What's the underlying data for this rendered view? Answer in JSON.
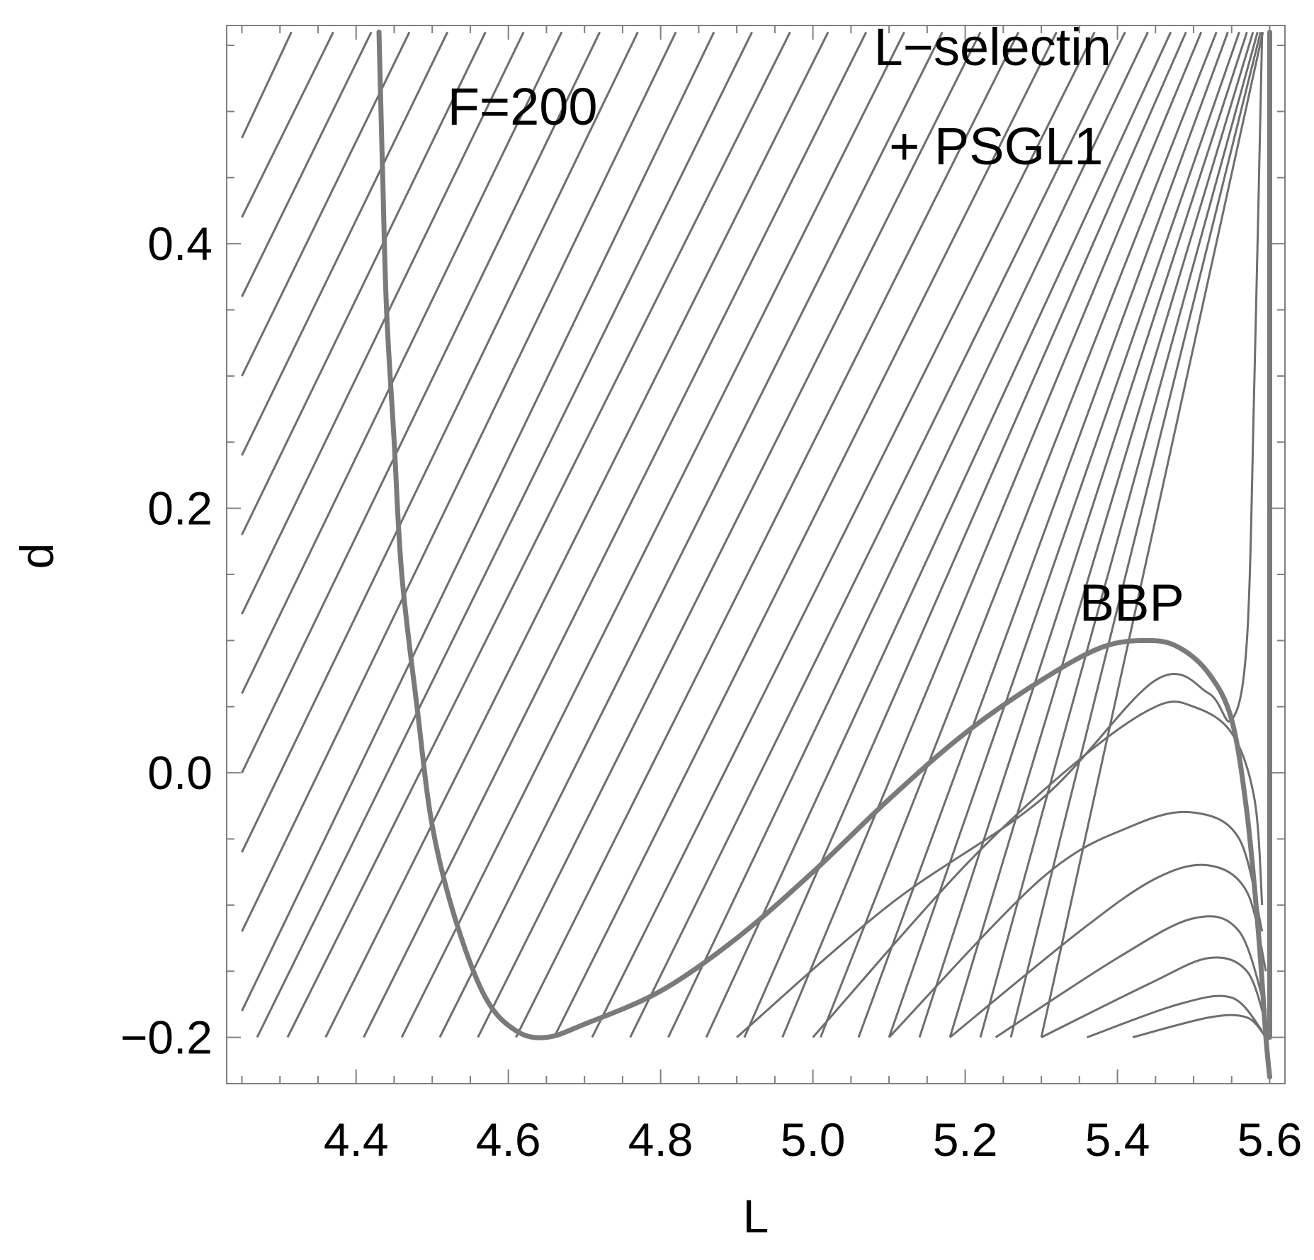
{
  "chart_data": {
    "type": "line",
    "title": "",
    "xlabel": "L",
    "ylabel": "d",
    "xlim": [
      4.23,
      5.62
    ],
    "ylim": [
      -0.235,
      0.565
    ],
    "grid": false,
    "legend": "none",
    "xticks": [
      {
        "value": 4.4,
        "label": "4.4"
      },
      {
        "value": 4.6,
        "label": "4.6"
      },
      {
        "value": 4.8,
        "label": "4.8"
      },
      {
        "value": 5.0,
        "label": "5.0"
      },
      {
        "value": 5.2,
        "label": "5.2"
      },
      {
        "value": 5.4,
        "label": "5.4"
      },
      {
        "value": 5.6,
        "label": "5.6"
      }
    ],
    "yticks": [
      {
        "value": -0.2,
        "label": "−0.2"
      },
      {
        "value": 0.0,
        "label": "0.0"
      },
      {
        "value": 0.2,
        "label": "0.2"
      },
      {
        "value": 0.4,
        "label": "0.4"
      }
    ],
    "annotations": [
      {
        "text": "F=200",
        "x": 4.52,
        "y": 0.49
      },
      {
        "text": "L−selectin",
        "x": 5.08,
        "y": 0.535
      },
      {
        "text": "+ PSGL1",
        "x": 5.1,
        "y": 0.46
      },
      {
        "text": "BBP",
        "x": 5.35,
        "y": 0.115
      }
    ],
    "stream_series": [
      {
        "name": "",
        "points": [
          [
            4.25,
            0.48
          ],
          [
            4.315,
            0.56
          ]
        ]
      },
      {
        "name": "",
        "points": [
          [
            4.25,
            0.42
          ],
          [
            4.37,
            0.56
          ]
        ]
      },
      {
        "name": "",
        "points": [
          [
            4.25,
            0.36
          ],
          [
            4.42,
            0.56
          ]
        ]
      },
      {
        "name": "",
        "points": [
          [
            4.25,
            0.3
          ],
          [
            4.47,
            0.56
          ]
        ]
      },
      {
        "name": "",
        "points": [
          [
            4.25,
            0.24
          ],
          [
            4.52,
            0.56
          ]
        ]
      },
      {
        "name": "",
        "points": [
          [
            4.25,
            0.18
          ],
          [
            4.57,
            0.56
          ]
        ]
      },
      {
        "name": "",
        "points": [
          [
            4.25,
            0.12
          ],
          [
            4.62,
            0.56
          ]
        ]
      },
      {
        "name": "",
        "points": [
          [
            4.25,
            0.06
          ],
          [
            4.67,
            0.56
          ]
        ]
      },
      {
        "name": "",
        "points": [
          [
            4.25,
            0.0
          ],
          [
            4.72,
            0.56
          ]
        ]
      },
      {
        "name": "",
        "points": [
          [
            4.25,
            -0.06
          ],
          [
            4.77,
            0.56
          ]
        ]
      },
      {
        "name": "",
        "points": [
          [
            4.25,
            -0.12
          ],
          [
            4.82,
            0.56
          ]
        ]
      },
      {
        "name": "",
        "points": [
          [
            4.25,
            -0.18
          ],
          [
            4.87,
            0.56
          ]
        ]
      },
      {
        "name": "",
        "points": [
          [
            4.27,
            -0.2
          ],
          [
            4.92,
            0.56
          ]
        ]
      },
      {
        "name": "",
        "points": [
          [
            4.31,
            -0.2
          ],
          [
            4.97,
            0.56
          ]
        ]
      },
      {
        "name": "",
        "points": [
          [
            4.36,
            -0.2
          ],
          [
            5.02,
            0.56
          ]
        ]
      },
      {
        "name": "",
        "points": [
          [
            4.41,
            -0.2
          ],
          [
            5.07,
            0.56
          ]
        ]
      },
      {
        "name": "",
        "points": [
          [
            4.46,
            -0.2
          ],
          [
            5.12,
            0.56
          ]
        ]
      },
      {
        "name": "",
        "points": [
          [
            4.51,
            -0.2
          ],
          [
            5.17,
            0.56
          ]
        ]
      },
      {
        "name": "",
        "points": [
          [
            4.56,
            -0.2
          ],
          [
            5.22,
            0.56
          ]
        ]
      },
      {
        "name": "",
        "points": [
          [
            4.61,
            -0.2
          ],
          [
            5.27,
            0.56
          ]
        ]
      },
      {
        "name": "",
        "points": [
          [
            4.66,
            -0.2
          ],
          [
            5.32,
            0.56
          ]
        ]
      },
      {
        "name": "",
        "points": [
          [
            4.71,
            -0.2
          ],
          [
            5.37,
            0.56
          ]
        ]
      },
      {
        "name": "",
        "points": [
          [
            4.76,
            -0.2
          ],
          [
            5.41,
            0.56
          ]
        ]
      },
      {
        "name": "",
        "points": [
          [
            4.81,
            -0.2
          ],
          [
            5.44,
            0.56
          ]
        ]
      },
      {
        "name": "",
        "points": [
          [
            4.86,
            -0.2
          ],
          [
            5.47,
            0.56
          ]
        ]
      },
      {
        "name": "",
        "points": [
          [
            4.91,
            -0.2
          ],
          [
            5.49,
            0.56
          ]
        ]
      },
      {
        "name": "",
        "points": [
          [
            4.96,
            -0.2
          ],
          [
            5.51,
            0.56
          ]
        ]
      },
      {
        "name": "",
        "points": [
          [
            5.01,
            -0.2
          ],
          [
            5.53,
            0.56
          ]
        ]
      },
      {
        "name": "",
        "points": [
          [
            5.06,
            -0.2
          ],
          [
            5.545,
            0.56
          ]
        ]
      },
      {
        "name": "",
        "points": [
          [
            5.1,
            -0.2
          ],
          [
            5.56,
            0.56
          ]
        ]
      },
      {
        "name": "",
        "points": [
          [
            5.14,
            -0.2
          ],
          [
            5.57,
            0.56
          ]
        ]
      },
      {
        "name": "",
        "points": [
          [
            5.18,
            -0.2
          ],
          [
            5.578,
            0.56
          ]
        ]
      },
      {
        "name": "",
        "points": [
          [
            5.22,
            -0.2
          ],
          [
            5.584,
            0.56
          ]
        ]
      },
      {
        "name": "",
        "points": [
          [
            5.26,
            -0.2
          ],
          [
            5.588,
            0.56
          ]
        ]
      },
      {
        "name": "",
        "points": [
          [
            5.3,
            -0.2
          ],
          [
            5.591,
            0.56
          ]
        ]
      },
      {
        "name": "",
        "points": [
          [
            4.9,
            -0.2
          ],
          [
            5.1,
            -0.1
          ],
          [
            5.3,
            -0.02
          ],
          [
            5.45,
            0.07
          ],
          [
            5.52,
            0.06
          ],
          [
            5.55,
            0.04
          ],
          [
            5.57,
            0.1
          ],
          [
            5.58,
            0.3
          ],
          [
            5.59,
            0.56
          ]
        ]
      },
      {
        "name": "",
        "points": [
          [
            5.0,
            -0.2
          ],
          [
            5.2,
            -0.07
          ],
          [
            5.35,
            0.01
          ],
          [
            5.45,
            0.05
          ],
          [
            5.5,
            0.05
          ],
          [
            5.55,
            0.03
          ],
          [
            5.58,
            -0.02
          ],
          [
            5.59,
            -0.1
          ]
        ]
      },
      {
        "name": "",
        "points": [
          [
            5.1,
            -0.2
          ],
          [
            5.3,
            -0.08
          ],
          [
            5.42,
            -0.04
          ],
          [
            5.5,
            -0.03
          ],
          [
            5.56,
            -0.05
          ],
          [
            5.59,
            -0.12
          ]
        ]
      },
      {
        "name": "",
        "points": [
          [
            5.18,
            -0.2
          ],
          [
            5.35,
            -0.12
          ],
          [
            5.45,
            -0.08
          ],
          [
            5.52,
            -0.07
          ],
          [
            5.57,
            -0.09
          ],
          [
            5.595,
            -0.15
          ]
        ]
      },
      {
        "name": "",
        "points": [
          [
            5.24,
            -0.2
          ],
          [
            5.4,
            -0.14
          ],
          [
            5.5,
            -0.11
          ],
          [
            5.56,
            -0.12
          ],
          [
            5.595,
            -0.18
          ]
        ]
      },
      {
        "name": "",
        "points": [
          [
            5.3,
            -0.2
          ],
          [
            5.44,
            -0.16
          ],
          [
            5.52,
            -0.14
          ],
          [
            5.57,
            -0.15
          ],
          [
            5.595,
            -0.19
          ]
        ]
      },
      {
        "name": "",
        "points": [
          [
            5.36,
            -0.2
          ],
          [
            5.48,
            -0.175
          ],
          [
            5.55,
            -0.17
          ],
          [
            5.59,
            -0.195
          ]
        ]
      },
      {
        "name": "",
        "points": [
          [
            5.42,
            -0.2
          ],
          [
            5.52,
            -0.185
          ],
          [
            5.57,
            -0.185
          ],
          [
            5.595,
            -0.2
          ]
        ]
      }
    ],
    "series": [
      {
        "name": "",
        "points": [
          [
            4.43,
            0.56
          ],
          [
            4.435,
            0.45
          ],
          [
            4.44,
            0.35
          ],
          [
            4.45,
            0.25
          ],
          [
            4.46,
            0.15
          ],
          [
            4.48,
            0.05
          ],
          [
            4.5,
            -0.04
          ],
          [
            4.53,
            -0.11
          ],
          [
            4.57,
            -0.17
          ],
          [
            4.61,
            -0.195
          ],
          [
            4.65,
            -0.2
          ],
          [
            4.7,
            -0.19
          ],
          [
            4.8,
            -0.165
          ],
          [
            4.9,
            -0.125
          ],
          [
            5.0,
            -0.075
          ],
          [
            5.1,
            -0.02
          ],
          [
            5.2,
            0.03
          ],
          [
            5.3,
            0.07
          ],
          [
            5.38,
            0.095
          ],
          [
            5.44,
            0.1
          ],
          [
            5.48,
            0.095
          ],
          [
            5.52,
            0.075
          ],
          [
            5.55,
            0.04
          ],
          [
            5.57,
            -0.03
          ],
          [
            5.585,
            -0.12
          ],
          [
            5.595,
            -0.2
          ],
          [
            5.6,
            -0.23
          ]
        ]
      },
      {
        "name": "",
        "points": [
          [
            5.6,
            -0.2
          ],
          [
            5.6,
            0.56
          ]
        ]
      }
    ]
  }
}
